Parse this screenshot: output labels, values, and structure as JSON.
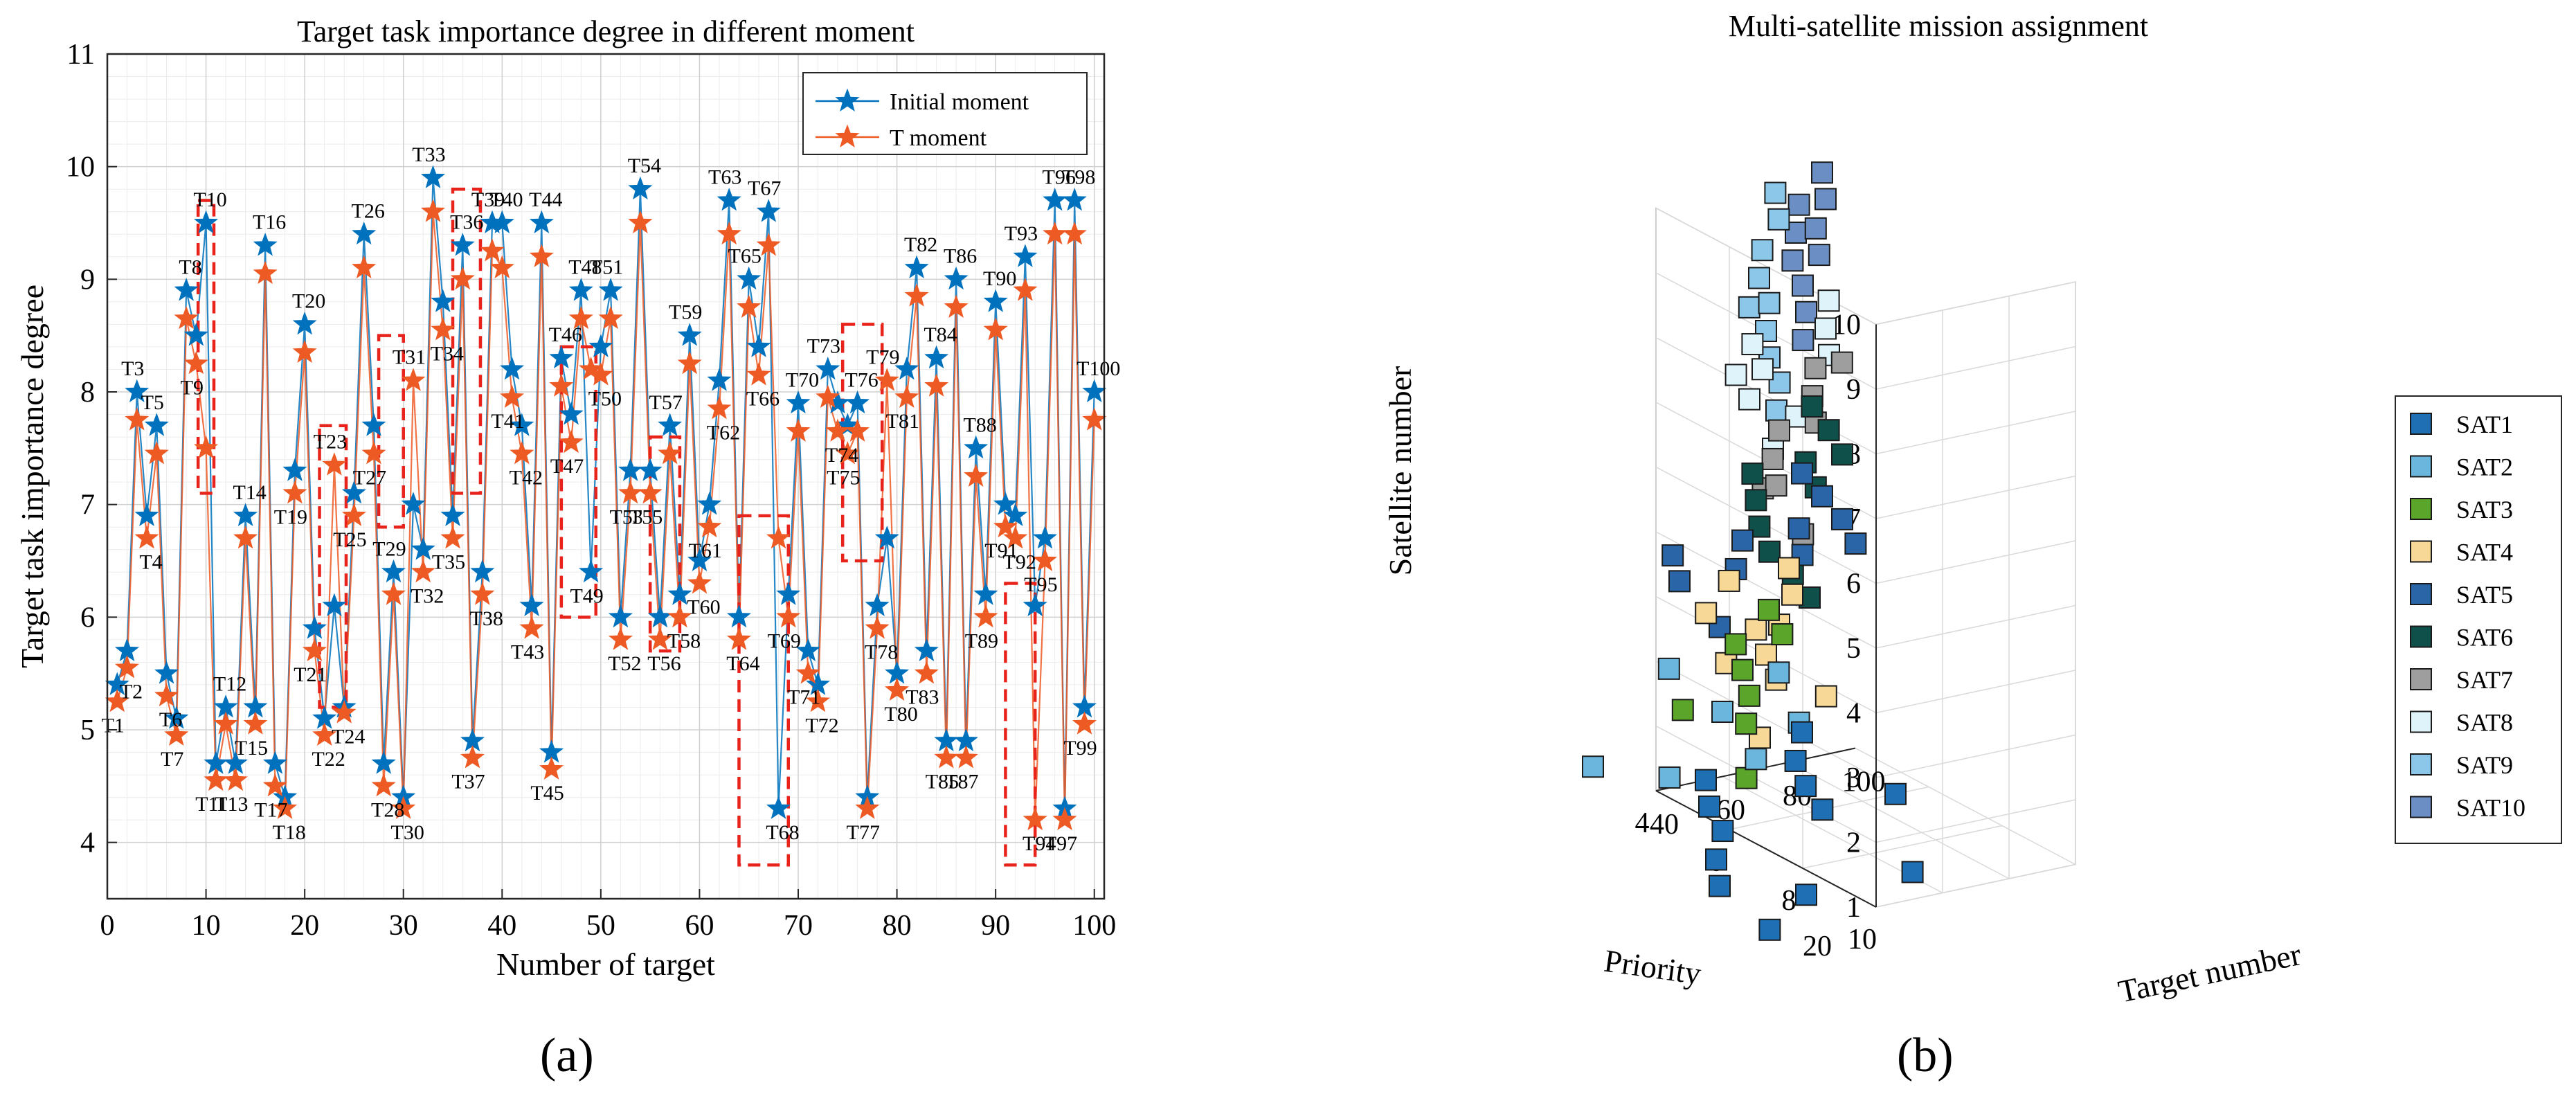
{
  "panel_labels": {
    "a": "(a)",
    "b": "(b)"
  },
  "colors": {
    "initial": "#0072BD",
    "t_moment": "#EE5A24",
    "highlight": "#E8231B",
    "grid": "#d9d9d9"
  },
  "chart_data": [
    {
      "type": "line",
      "title": "Target task importance degree in different moment",
      "xlabel": "Number of target",
      "ylabel": "Target task importance degree",
      "xlim": [
        0,
        101
      ],
      "ylim": [
        3.5,
        11
      ],
      "xticks": [
        0,
        10,
        20,
        30,
        40,
        50,
        60,
        70,
        80,
        90,
        100
      ],
      "yticks": [
        4,
        5,
        6,
        7,
        8,
        9,
        10,
        11
      ],
      "grid": true,
      "legend": "top-right",
      "series": [
        {
          "name": "Initial moment",
          "marker": "star",
          "color": "#0072BD",
          "values": [
            5.4,
            5.7,
            8.0,
            6.9,
            7.7,
            5.5,
            5.1,
            8.9,
            8.5,
            9.5,
            4.7,
            5.2,
            4.7,
            6.9,
            5.2,
            9.3,
            4.7,
            4.4,
            7.3,
            8.6,
            5.9,
            5.1,
            6.1,
            5.2,
            7.1,
            9.4,
            7.7,
            4.7,
            6.4,
            4.4,
            7.0,
            6.6,
            9.9,
            8.8,
            6.9,
            9.3,
            4.9,
            6.4,
            9.5,
            9.5,
            8.2,
            7.7,
            6.1,
            9.5,
            4.8,
            8.3,
            7.8,
            8.9,
            6.4,
            8.4,
            8.9,
            6.0,
            7.3,
            9.8,
            7.3,
            6.0,
            7.7,
            6.2,
            8.5,
            6.5,
            7.0,
            8.1,
            9.7,
            6.0,
            9.0,
            8.4,
            9.6,
            4.3,
            6.2,
            7.9,
            5.7,
            5.4,
            8.2,
            7.9,
            7.7,
            7.9,
            4.4,
            6.1,
            6.7,
            5.5,
            8.2,
            9.1,
            5.7,
            8.3,
            4.9,
            9.0,
            4.9,
            7.5,
            6.2,
            8.8,
            7.0,
            6.9,
            9.2,
            6.1,
            6.7,
            9.7,
            4.3,
            9.7,
            5.2,
            8.0
          ]
        },
        {
          "name": "T moment",
          "marker": "star",
          "color": "#EE5A24",
          "values": [
            5.25,
            5.55,
            7.75,
            6.7,
            7.45,
            5.3,
            4.95,
            8.65,
            8.25,
            7.5,
            4.55,
            5.05,
            4.55,
            6.7,
            5.05,
            9.05,
            4.5,
            4.3,
            7.1,
            8.35,
            5.7,
            4.95,
            7.35,
            5.15,
            6.9,
            9.1,
            7.45,
            4.5,
            6.2,
            4.3,
            8.1,
            6.4,
            9.6,
            8.55,
            6.7,
            9.0,
            4.75,
            6.2,
            9.25,
            9.1,
            7.95,
            7.45,
            5.9,
            9.2,
            4.65,
            8.05,
            7.55,
            8.65,
            8.2,
            8.15,
            8.65,
            5.8,
            7.1,
            9.5,
            7.1,
            5.8,
            7.45,
            6.0,
            8.25,
            6.3,
            6.8,
            7.85,
            9.4,
            5.8,
            8.75,
            8.15,
            9.3,
            6.7,
            6.0,
            7.65,
            5.5,
            5.25,
            7.95,
            7.65,
            7.45,
            7.65,
            4.3,
            5.9,
            8.1,
            5.35,
            7.95,
            8.85,
            5.5,
            8.05,
            4.75,
            8.75,
            4.75,
            7.25,
            6.0,
            8.55,
            6.8,
            6.7,
            8.9,
            4.2,
            6.5,
            9.4,
            4.2,
            9.4,
            5.05,
            7.75
          ]
        }
      ],
      "point_labels": [
        "T1",
        "T2",
        "T3",
        "T4",
        "T5",
        "T6",
        "T7",
        "T8",
        "T9",
        "T10",
        "T11",
        "T12",
        "T13",
        "T14",
        "T15",
        "T16",
        "T17",
        "T18",
        "T19",
        "T20",
        "T21",
        "T22",
        "T23",
        "T24",
        "T25",
        "T26",
        "T27",
        "T28",
        "T29",
        "T30",
        "T31",
        "T32",
        "T33",
        "T34",
        "T35",
        "T36",
        "T37",
        "T38",
        "T39",
        "T40",
        "T41",
        "T42",
        "T43",
        "T44",
        "T45",
        "T46",
        "T47",
        "T48",
        "T49",
        "T50",
        "T51",
        "T52",
        "T53",
        "T54",
        "T55",
        "T56",
        "T57",
        "T58",
        "T59",
        "T60",
        "T61",
        "T62",
        "T63",
        "T64",
        "T65",
        "T66",
        "T67",
        "T68",
        "T69",
        "T70",
        "T71",
        "T72",
        "T73",
        "T74",
        "T75",
        "T76",
        "T77",
        "T78",
        "T79",
        "T80",
        "T81",
        "T82",
        "T83",
        "T84",
        "T85",
        "T86",
        "T87",
        "T88",
        "T89",
        "T90",
        "T91",
        "T92",
        "T93",
        "T94",
        "T95",
        "T96",
        "T97",
        "T98",
        "T99",
        "T100"
      ],
      "highlight_boxes": [
        {
          "x": [
            9.2,
            10.8
          ],
          "y": [
            7.1,
            9.7
          ]
        },
        {
          "x": [
            21.5,
            24.2
          ],
          "y": [
            5.2,
            7.7
          ]
        },
        {
          "x": [
            27.5,
            30.0
          ],
          "y": [
            6.8,
            8.5
          ]
        },
        {
          "x": [
            35.0,
            37.8
          ],
          "y": [
            7.1,
            9.8
          ]
        },
        {
          "x": [
            46.0,
            49.5
          ],
          "y": [
            6.0,
            8.4
          ]
        },
        {
          "x": [
            55.0,
            58.0
          ],
          "y": [
            5.7,
            7.6
          ]
        },
        {
          "x": [
            64.0,
            69.0
          ],
          "y": [
            3.8,
            6.9
          ]
        },
        {
          "x": [
            74.5,
            78.5
          ],
          "y": [
            6.5,
            8.6
          ]
        },
        {
          "x": [
            91.0,
            94.0
          ],
          "y": [
            3.8,
            6.3
          ]
        }
      ]
    },
    {
      "type": "scatter3d",
      "title": "Multi-satellite mission assignment",
      "xlabel": "Target number",
      "ylabel": "Priority",
      "zlabel": "Satellite number",
      "xticks": [
        20,
        40,
        60,
        80,
        100
      ],
      "yticks": [
        4,
        6,
        8,
        10
      ],
      "zticks": [
        1,
        2,
        3,
        4,
        5,
        6,
        7,
        8,
        9,
        10
      ],
      "legend": "right",
      "series": [
        {
          "name": "SAT1",
          "color": "#1f6fb4",
          "points": [
            [
              8,
              10,
              1
            ],
            [
              15,
              8,
              1
            ],
            [
              25,
              7,
              1
            ],
            [
              38,
              6,
              1
            ],
            [
              45,
              5,
              1
            ],
            [
              55,
              4,
              1
            ],
            [
              62,
              9,
              1
            ],
            [
              68,
              6,
              1
            ],
            [
              74,
              5,
              1
            ],
            [
              82,
              4,
              1
            ],
            [
              90,
              6,
              1
            ],
            [
              95,
              3,
              1
            ],
            [
              30,
              9,
              1
            ]
          ]
        },
        {
          "name": "SAT2",
          "color": "#6ab6dd",
          "points": [
            [
              10,
              5,
              2
            ],
            [
              22,
              6,
              2
            ],
            [
              48,
              6,
              2
            ],
            [
              60,
              4,
              2
            ],
            [
              66,
              2,
              2
            ],
            [
              72,
              5,
              2
            ],
            [
              88,
              3,
              2
            ]
          ]
        },
        {
          "name": "SAT3",
          "color": "#5aa52a",
          "points": [
            [
              12,
              9,
              3
            ],
            [
              26,
              6,
              3
            ],
            [
              34,
              7,
              3
            ],
            [
              46,
              6,
              3
            ],
            [
              55,
              5,
              3
            ],
            [
              64,
              4,
              3
            ],
            [
              78,
              4,
              3
            ],
            [
              85,
              3,
              3
            ]
          ]
        },
        {
          "name": "SAT4",
          "color": "#f7d896",
          "points": [
            [
              5,
              10,
              4
            ],
            [
              32,
              8,
              4
            ],
            [
              40,
              7,
              4
            ],
            [
              48,
              6,
              4
            ],
            [
              55,
              6,
              4
            ],
            [
              62,
              4,
              4
            ],
            [
              70,
              5,
              4
            ],
            [
              80,
              4,
              4
            ],
            [
              44,
              5,
              4
            ],
            [
              28,
              7,
              4
            ],
            [
              36,
              9,
              4
            ]
          ]
        },
        {
          "name": "SAT5",
          "color": "#2a65a8",
          "points": [
            [
              15,
              8,
              5
            ],
            [
              25,
              6,
              5
            ],
            [
              34,
              5,
              5
            ],
            [
              42,
              6,
              5
            ],
            [
              55,
              5,
              5
            ],
            [
              62,
              6,
              5
            ],
            [
              72,
              5,
              5
            ],
            [
              78,
              6,
              5
            ],
            [
              85,
              5,
              5
            ],
            [
              90,
              4,
              5
            ],
            [
              95,
              3,
              5
            ]
          ]
        },
        {
          "name": "SAT6",
          "color": "#10504a",
          "points": [
            [
              20,
              10,
              6
            ],
            [
              30,
              8,
              6
            ],
            [
              38,
              7,
              6
            ],
            [
              48,
              6,
              6
            ],
            [
              58,
              5,
              6
            ],
            [
              66,
              6,
              6
            ],
            [
              74,
              5,
              6
            ],
            [
              85,
              5,
              6
            ],
            [
              92,
              4,
              6
            ],
            [
              98,
              3,
              6
            ],
            [
              26,
              9,
              6
            ]
          ]
        },
        {
          "name": "SAT7",
          "color": "#9e9e9e",
          "points": [
            [
              18,
              10,
              7
            ],
            [
              32,
              8,
              7
            ],
            [
              42,
              7,
              7
            ],
            [
              55,
              6,
              7
            ],
            [
              66,
              6,
              7
            ],
            [
              76,
              5,
              7
            ],
            [
              88,
              4,
              7
            ],
            [
              96,
              4,
              7
            ],
            [
              28,
              8,
              7
            ]
          ]
        },
        {
          "name": "SAT8",
          "color": "#dff3fb",
          "points": [
            [
              20,
              9,
              8
            ],
            [
              35,
              7,
              8
            ],
            [
              42,
              6,
              8
            ],
            [
              50,
              6,
              8
            ],
            [
              58,
              5,
              8
            ],
            [
              70,
              6,
              8
            ],
            [
              80,
              5,
              8
            ],
            [
              92,
              4,
              8
            ],
            [
              38,
              8,
              8
            ]
          ]
        },
        {
          "name": "SAT9",
          "color": "#8cc7ea",
          "points": [
            [
              10,
              10,
              9
            ],
            [
              22,
              9,
              9
            ],
            [
              30,
              8,
              9
            ],
            [
              40,
              7,
              9
            ],
            [
              52,
              6,
              9
            ],
            [
              60,
              5,
              9
            ],
            [
              72,
              4,
              9
            ],
            [
              88,
              3,
              9
            ],
            [
              98,
              2,
              9
            ],
            [
              46,
              6,
              9
            ]
          ]
        },
        {
          "name": "SAT10",
          "color": "#6b8fc4",
          "points": [
            [
              18,
              10,
              10
            ],
            [
              30,
              9,
              10
            ],
            [
              40,
              8,
              10
            ],
            [
              48,
              7,
              10
            ],
            [
              56,
              7,
              10
            ],
            [
              66,
              6,
              10
            ],
            [
              72,
              5,
              10
            ],
            [
              80,
              5,
              10
            ],
            [
              90,
              4,
              10
            ],
            [
              60,
              6,
              10
            ]
          ]
        }
      ]
    }
  ]
}
